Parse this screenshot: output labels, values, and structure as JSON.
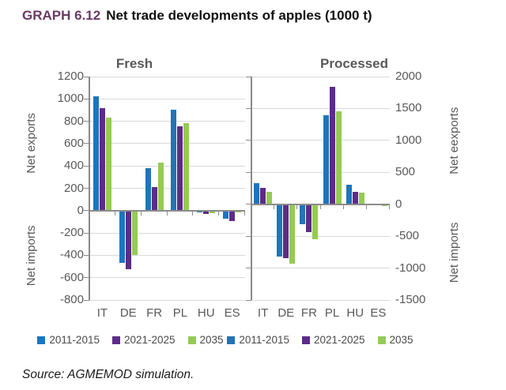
{
  "header": {
    "graph_label": "GRAPH 6.12",
    "title": "Net trade developments of apples (1000 t)"
  },
  "source": "Source: AGMEMOD simulation.",
  "legend": [
    "2011-2015",
    "2021-2025",
    "2035"
  ],
  "colors": {
    "blue": "#1e75bb",
    "purple": "#5d2c87",
    "green": "#95cb52",
    "title_accent": "#6a3a64",
    "grid": "#d9d9d9",
    "axis": "#8a8a8a",
    "text": "#595959"
  },
  "chart_data": [
    {
      "type": "bar",
      "title": "Fresh",
      "categories": [
        "IT",
        "DE",
        "FR",
        "PL",
        "HU",
        "ES"
      ],
      "series": [
        {
          "name": "2011-2015",
          "color_key": "blue",
          "values": [
            1020,
            -470,
            380,
            905,
            -5,
            -75
          ]
        },
        {
          "name": "2021-2025",
          "color_key": "purple",
          "values": [
            915,
            -525,
            210,
            755,
            -30,
            -90
          ]
        },
        {
          "name": "2035",
          "color_key": "green",
          "values": [
            835,
            -400,
            430,
            785,
            -25,
            -10
          ]
        }
      ],
      "ylim": [
        -800,
        1200
      ],
      "yticks": [
        1200,
        1000,
        800,
        600,
        400,
        200,
        0,
        -200,
        -400,
        -600,
        -800
      ],
      "axis_side": "left",
      "axis_label_top": "Net exports",
      "axis_label_bottom": "Net imports",
      "grid": true,
      "legend_position": "bottom"
    },
    {
      "type": "bar",
      "title": "Processed",
      "categories": [
        "IT",
        "DE",
        "FR",
        "PL",
        "HU",
        "ES"
      ],
      "series": [
        {
          "name": "2011-2015",
          "color_key": "blue",
          "values": [
            330,
            -820,
            -310,
            1400,
            310,
            0
          ]
        },
        {
          "name": "2021-2025",
          "color_key": "purple",
          "values": [
            255,
            -845,
            -435,
            1845,
            200,
            0
          ]
        },
        {
          "name": "2035",
          "color_key": "green",
          "values": [
            200,
            -935,
            -550,
            1460,
            185,
            -30
          ]
        }
      ],
      "ylim": [
        -1500,
        2000
      ],
      "yticks": [
        2000,
        1500,
        1000,
        500,
        0,
        -500,
        -1000,
        -1500
      ],
      "axis_side": "right",
      "axis_label_top": "Net eexports",
      "axis_label_bottom": "Net imports",
      "grid": true,
      "legend_position": "bottom"
    }
  ]
}
